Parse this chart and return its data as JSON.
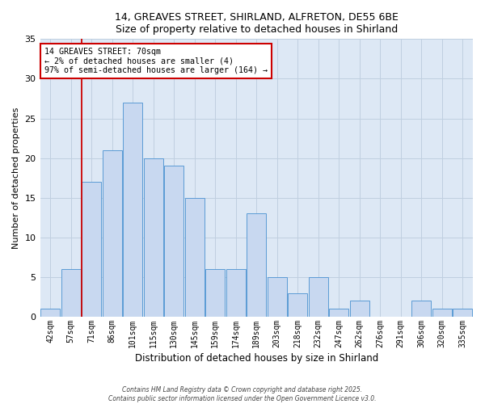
{
  "title_line1": "14, GREAVES STREET, SHIRLAND, ALFRETON, DE55 6BE",
  "title_line2": "Size of property relative to detached houses in Shirland",
  "xlabel": "Distribution of detached houses by size in Shirland",
  "ylabel": "Number of detached properties",
  "bar_labels": [
    "42sqm",
    "57sqm",
    "71sqm",
    "86sqm",
    "101sqm",
    "115sqm",
    "130sqm",
    "145sqm",
    "159sqm",
    "174sqm",
    "189sqm",
    "203sqm",
    "218sqm",
    "232sqm",
    "247sqm",
    "262sqm",
    "276sqm",
    "291sqm",
    "306sqm",
    "320sqm",
    "335sqm"
  ],
  "bar_values": [
    1,
    6,
    17,
    21,
    27,
    20,
    19,
    15,
    6,
    6,
    13,
    5,
    3,
    5,
    1,
    2,
    0,
    0,
    2,
    1,
    1
  ],
  "bar_color": "#c8d8f0",
  "bar_edgecolor": "#5b9bd5",
  "vline_color": "#cc0000",
  "annotation_text": "14 GREAVES STREET: 70sqm\n← 2% of detached houses are smaller (4)\n97% of semi-detached houses are larger (164) →",
  "annotation_box_edgecolor": "#cc0000",
  "annotation_box_facecolor": "#ffffff",
  "ylim": [
    0,
    35
  ],
  "yticks": [
    0,
    5,
    10,
    15,
    20,
    25,
    30,
    35
  ],
  "footer_line1": "Contains HM Land Registry data © Crown copyright and database right 2025.",
  "footer_line2": "Contains public sector information licensed under the Open Government Licence v3.0.",
  "bg_color": "#dde8f5",
  "fig_bg_color": "#ffffff",
  "grid_color": "#c0cfe0"
}
